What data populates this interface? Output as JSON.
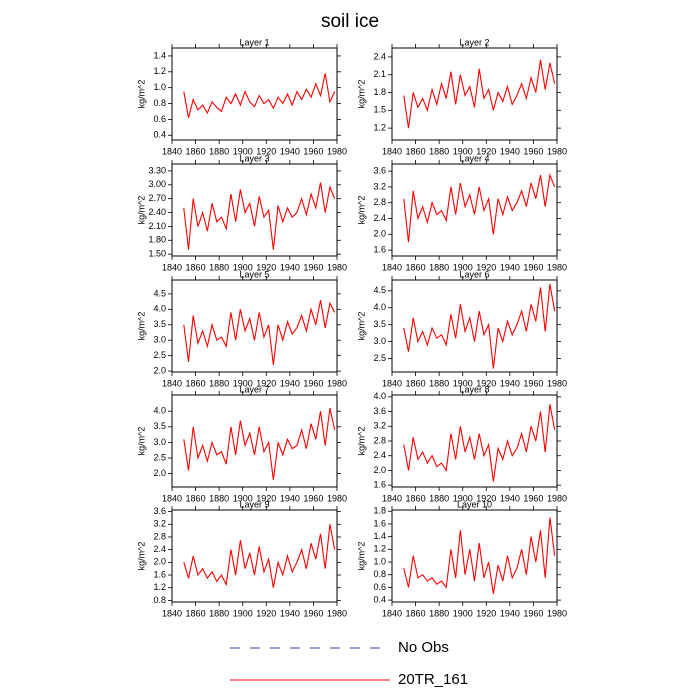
{
  "title": "soil ice",
  "legend": [
    {
      "name": "No Obs",
      "color": "#3344aa",
      "dash": true
    },
    {
      "name": "20TR_161",
      "color": "#ff0000",
      "dash": false
    }
  ],
  "chart_data": [
    {
      "type": "line",
      "title": "Layer 1",
      "ylabel": "kg/m^2",
      "color": "#ff0000",
      "x": [
        1850,
        1854,
        1858,
        1862,
        1866,
        1870,
        1874,
        1878,
        1882,
        1886,
        1890,
        1894,
        1898,
        1902,
        1906,
        1910,
        1914,
        1918,
        1922,
        1926,
        1930,
        1934,
        1938,
        1942,
        1946,
        1950,
        1954,
        1958,
        1962,
        1966,
        1970,
        1974,
        1978
      ],
      "values": [
        0.95,
        0.62,
        0.85,
        0.72,
        0.78,
        0.68,
        0.82,
        0.75,
        0.7,
        0.88,
        0.8,
        0.92,
        0.78,
        0.95,
        0.82,
        0.76,
        0.9,
        0.8,
        0.85,
        0.74,
        0.88,
        0.8,
        0.92,
        0.78,
        0.95,
        0.85,
        0.98,
        0.88,
        1.05,
        0.9,
        1.18,
        0.82,
        0.95
      ],
      "xlim": [
        1840,
        1980
      ],
      "xticks": [
        1840,
        1860,
        1880,
        1900,
        1920,
        1940,
        1960,
        1980
      ],
      "ylim": [
        0.34,
        1.5
      ],
      "yticks": [
        0.4,
        0.6,
        0.8,
        {
          "value": 1,
          "label": "1.0"
        },
        1.2,
        1.4
      ]
    },
    {
      "type": "line",
      "title": "Layer 2",
      "ylabel": "kg/m^2",
      "color": "#ff0000",
      "x": [
        1850,
        1854,
        1858,
        1862,
        1866,
        1870,
        1874,
        1878,
        1882,
        1886,
        1890,
        1894,
        1898,
        1902,
        1906,
        1910,
        1914,
        1918,
        1922,
        1926,
        1930,
        1934,
        1938,
        1942,
        1946,
        1950,
        1954,
        1958,
        1962,
        1966,
        1970,
        1974,
        1978
      ],
      "values": [
        1.75,
        1.2,
        1.8,
        1.55,
        1.7,
        1.5,
        1.85,
        1.6,
        1.95,
        1.7,
        2.15,
        1.6,
        2.1,
        1.75,
        1.9,
        1.55,
        2.2,
        1.7,
        1.85,
        1.5,
        1.8,
        1.65,
        1.9,
        1.6,
        1.75,
        1.95,
        1.7,
        2.05,
        1.8,
        2.35,
        1.85,
        2.3,
        1.95
      ],
      "xlim": [
        1840,
        1980
      ],
      "xticks": [
        1840,
        1860,
        1880,
        1900,
        1920,
        1940,
        1960,
        1980
      ],
      "ylim": [
        1.0,
        2.55
      ],
      "yticks": [
        1.2,
        1.5,
        1.8,
        2.1,
        2.4
      ]
    },
    {
      "type": "line",
      "title": "Layer 3",
      "ylabel": "kg/m^2",
      "color": "#ff0000",
      "x": [
        1850,
        1854,
        1858,
        1862,
        1866,
        1870,
        1874,
        1878,
        1882,
        1886,
        1890,
        1894,
        1898,
        1902,
        1906,
        1910,
        1914,
        1918,
        1922,
        1926,
        1930,
        1934,
        1938,
        1942,
        1946,
        1950,
        1954,
        1958,
        1962,
        1966,
        1970,
        1974,
        1978
      ],
      "values": [
        2.5,
        1.6,
        2.7,
        2.1,
        2.4,
        2.0,
        2.6,
        2.2,
        2.3,
        2.05,
        2.8,
        2.2,
        2.9,
        2.4,
        2.6,
        2.1,
        2.75,
        2.3,
        2.45,
        1.6,
        2.55,
        2.2,
        2.5,
        2.3,
        2.4,
        2.7,
        2.35,
        2.8,
        2.5,
        3.05,
        2.4,
        2.95,
        2.7
      ],
      "xlim": [
        1840,
        1980
      ],
      "xticks": [
        1840,
        1860,
        1880,
        1900,
        1920,
        1940,
        1960,
        1980
      ],
      "ylim": [
        1.46,
        3.45
      ],
      "yticks": [
        {
          "value": 1.5,
          "label": "1.50"
        },
        {
          "value": 1.8,
          "label": "1.80"
        },
        {
          "value": 2.1,
          "label": "2.10"
        },
        {
          "value": 2.4,
          "label": "2.40"
        },
        {
          "value": 2.7,
          "label": "2.70"
        },
        {
          "value": 3,
          "label": "3.00"
        },
        {
          "value": 3.3,
          "label": "3.30"
        }
      ]
    },
    {
      "type": "line",
      "title": "Layer 4",
      "ylabel": "kg/m^2",
      "color": "#ff0000",
      "x": [
        1850,
        1854,
        1858,
        1862,
        1866,
        1870,
        1874,
        1878,
        1882,
        1886,
        1890,
        1894,
        1898,
        1902,
        1906,
        1910,
        1914,
        1918,
        1922,
        1926,
        1930,
        1934,
        1938,
        1942,
        1946,
        1950,
        1954,
        1958,
        1962,
        1966,
        1970,
        1974,
        1978
      ],
      "values": [
        2.9,
        1.8,
        3.1,
        2.4,
        2.7,
        2.3,
        2.8,
        2.5,
        2.6,
        2.35,
        3.2,
        2.5,
        3.3,
        2.7,
        3.0,
        2.5,
        3.2,
        2.6,
        2.9,
        2.0,
        2.9,
        2.5,
        2.95,
        2.6,
        2.8,
        3.1,
        2.7,
        3.3,
        2.9,
        3.5,
        2.7,
        3.5,
        3.2
      ],
      "xlim": [
        1840,
        1980
      ],
      "xticks": [
        1840,
        1860,
        1880,
        1900,
        1920,
        1940,
        1960,
        1980
      ],
      "ylim": [
        1.45,
        3.78
      ],
      "yticks": [
        1.6,
        {
          "value": 2,
          "label": "2.0"
        },
        2.4,
        2.8,
        3.2,
        3.6
      ]
    },
    {
      "type": "line",
      "title": "Layer 5",
      "ylabel": "kg/m^2",
      "color": "#ff0000",
      "x": [
        1850,
        1854,
        1858,
        1862,
        1866,
        1870,
        1874,
        1878,
        1882,
        1886,
        1890,
        1894,
        1898,
        1902,
        1906,
        1910,
        1914,
        1918,
        1922,
        1926,
        1930,
        1934,
        1938,
        1942,
        1946,
        1950,
        1954,
        1958,
        1962,
        1966,
        1970,
        1974,
        1978
      ],
      "values": [
        3.5,
        2.3,
        3.8,
        2.9,
        3.3,
        2.8,
        3.5,
        3.0,
        3.1,
        2.8,
        3.9,
        3.0,
        4.0,
        3.3,
        3.7,
        3.0,
        3.9,
        3.1,
        3.5,
        2.2,
        3.5,
        3.0,
        3.6,
        3.2,
        3.4,
        3.8,
        3.3,
        4.0,
        3.5,
        4.3,
        3.4,
        4.2,
        3.9
      ],
      "xlim": [
        1840,
        1980
      ],
      "xticks": [
        1840,
        1860,
        1880,
        1900,
        1920,
        1940,
        1960,
        1980
      ],
      "ylim": [
        1.97,
        4.95
      ],
      "yticks": [
        {
          "value": 2,
          "label": "2.0"
        },
        2.5,
        {
          "value": 3,
          "label": "3.0"
        },
        3.5,
        {
          "value": 4,
          "label": "4.0"
        },
        4.5
      ]
    },
    {
      "type": "line",
      "title": "Layer 6",
      "ylabel": "kg/m^2",
      "color": "#ff0000",
      "x": [
        1850,
        1854,
        1858,
        1862,
        1866,
        1870,
        1874,
        1878,
        1882,
        1886,
        1890,
        1894,
        1898,
        1902,
        1906,
        1910,
        1914,
        1918,
        1922,
        1926,
        1930,
        1934,
        1938,
        1942,
        1946,
        1950,
        1954,
        1958,
        1962,
        1966,
        1970,
        1974,
        1978
      ],
      "values": [
        3.4,
        2.7,
        3.7,
        3.0,
        3.3,
        2.9,
        3.4,
        3.1,
        3.2,
        2.9,
        3.8,
        3.1,
        4.1,
        3.3,
        3.7,
        3.0,
        3.9,
        3.2,
        3.5,
        2.2,
        3.4,
        3.0,
        3.6,
        3.2,
        3.5,
        3.9,
        3.3,
        4.1,
        3.6,
        4.6,
        3.3,
        4.7,
        3.9
      ],
      "xlim": [
        1840,
        1980
      ],
      "xticks": [
        1840,
        1860,
        1880,
        1900,
        1920,
        1940,
        1960,
        1980
      ],
      "ylim": [
        2.1,
        4.82
      ],
      "yticks": [
        2.5,
        {
          "value": 3,
          "label": "3.0"
        },
        3.5,
        {
          "value": 4,
          "label": "4.0"
        },
        4.5
      ]
    },
    {
      "type": "line",
      "title": "Layer 7",
      "ylabel": "kg/m^2",
      "color": "#ff0000",
      "x": [
        1850,
        1854,
        1858,
        1862,
        1866,
        1870,
        1874,
        1878,
        1882,
        1886,
        1890,
        1894,
        1898,
        1902,
        1906,
        1910,
        1914,
        1918,
        1922,
        1926,
        1930,
        1934,
        1938,
        1942,
        1946,
        1950,
        1954,
        1958,
        1962,
        1966,
        1970,
        1974,
        1978
      ],
      "values": [
        3.1,
        2.1,
        3.5,
        2.5,
        2.9,
        2.4,
        3.0,
        2.6,
        2.7,
        2.3,
        3.5,
        2.6,
        3.7,
        2.9,
        3.3,
        2.6,
        3.5,
        2.7,
        3.0,
        1.8,
        3.0,
        2.6,
        3.1,
        2.8,
        2.9,
        3.4,
        2.8,
        3.6,
        3.1,
        4.0,
        2.9,
        4.1,
        3.4
      ],
      "xlim": [
        1840,
        1980
      ],
      "xticks": [
        1840,
        1860,
        1880,
        1900,
        1920,
        1940,
        1960,
        1980
      ],
      "ylim": [
        1.57,
        4.52
      ],
      "yticks": [
        {
          "value": 2,
          "label": "2.0"
        },
        2.5,
        {
          "value": 3,
          "label": "3.0"
        },
        3.5,
        {
          "value": 4,
          "label": "4.0"
        }
      ]
    },
    {
      "type": "line",
      "title": "Layer 8",
      "ylabel": "kg/m^2",
      "color": "#ff0000",
      "x": [
        1850,
        1854,
        1858,
        1862,
        1866,
        1870,
        1874,
        1878,
        1882,
        1886,
        1890,
        1894,
        1898,
        1902,
        1906,
        1910,
        1914,
        1918,
        1922,
        1926,
        1930,
        1934,
        1938,
        1942,
        1946,
        1950,
        1954,
        1958,
        1962,
        1966,
        1970,
        1974,
        1978
      ],
      "values": [
        2.7,
        2.0,
        2.9,
        2.3,
        2.5,
        2.2,
        2.4,
        2.1,
        2.2,
        2.0,
        3.0,
        2.3,
        3.2,
        2.5,
        2.9,
        2.3,
        3.0,
        2.4,
        2.7,
        1.7,
        2.6,
        2.3,
        2.8,
        2.4,
        2.6,
        3.0,
        2.5,
        3.2,
        2.8,
        3.6,
        2.5,
        3.8,
        3.1
      ],
      "xlim": [
        1840,
        1980
      ],
      "xticks": [
        1840,
        1860,
        1880,
        1900,
        1920,
        1940,
        1960,
        1980
      ],
      "ylim": [
        1.55,
        4.05
      ],
      "yticks": [
        1.6,
        {
          "value": 2,
          "label": "2.0"
        },
        2.4,
        2.8,
        3.2,
        3.6,
        {
          "value": 4,
          "label": "4.0"
        }
      ]
    },
    {
      "type": "line",
      "title": "Layer 9",
      "ylabel": "kg/m^2",
      "color": "#ff0000",
      "x": [
        1850,
        1854,
        1858,
        1862,
        1866,
        1870,
        1874,
        1878,
        1882,
        1886,
        1890,
        1894,
        1898,
        1902,
        1906,
        1910,
        1914,
        1918,
        1922,
        1926,
        1930,
        1934,
        1938,
        1942,
        1946,
        1950,
        1954,
        1958,
        1962,
        1966,
        1970,
        1974,
        1978
      ],
      "values": [
        2.0,
        1.5,
        2.2,
        1.6,
        1.8,
        1.5,
        1.7,
        1.4,
        1.6,
        1.3,
        2.4,
        1.6,
        2.7,
        1.8,
        2.3,
        1.6,
        2.5,
        1.7,
        2.1,
        1.2,
        2.0,
        1.6,
        2.2,
        1.7,
        2.0,
        2.4,
        1.8,
        2.6,
        2.1,
        2.9,
        1.8,
        3.2,
        2.4
      ],
      "xlim": [
        1840,
        1980
      ],
      "xticks": [
        1840,
        1860,
        1880,
        1900,
        1920,
        1940,
        1960,
        1980
      ],
      "ylim": [
        0.75,
        3.65
      ],
      "yticks": [
        0.8,
        1.2,
        1.6,
        {
          "value": 2,
          "label": "2.0"
        },
        2.4,
        2.8,
        3.2,
        3.6
      ]
    },
    {
      "type": "line",
      "title": "Layer 10",
      "ylabel": "kg/m^2",
      "color": "#ff0000",
      "x": [
        1850,
        1854,
        1858,
        1862,
        1866,
        1870,
        1874,
        1878,
        1882,
        1886,
        1890,
        1894,
        1898,
        1902,
        1906,
        1910,
        1914,
        1918,
        1922,
        1926,
        1930,
        1934,
        1938,
        1942,
        1946,
        1950,
        1954,
        1958,
        1962,
        1966,
        1970,
        1974,
        1978
      ],
      "values": [
        0.9,
        0.6,
        1.1,
        0.75,
        0.8,
        0.7,
        0.75,
        0.65,
        0.7,
        0.6,
        1.2,
        0.75,
        1.5,
        0.8,
        1.2,
        0.7,
        1.3,
        0.75,
        1.0,
        0.5,
        0.95,
        0.7,
        1.1,
        0.75,
        0.9,
        1.2,
        0.8,
        1.4,
        1.0,
        1.5,
        0.75,
        1.7,
        1.1
      ],
      "xlim": [
        1840,
        1980
      ],
      "xticks": [
        1840,
        1860,
        1880,
        1900,
        1920,
        1940,
        1960,
        1980
      ],
      "ylim": [
        0.37,
        1.82
      ],
      "yticks": [
        0.4,
        0.6,
        0.8,
        {
          "value": 1,
          "label": "1.0"
        },
        1.2,
        1.4,
        1.6,
        1.8
      ]
    }
  ]
}
